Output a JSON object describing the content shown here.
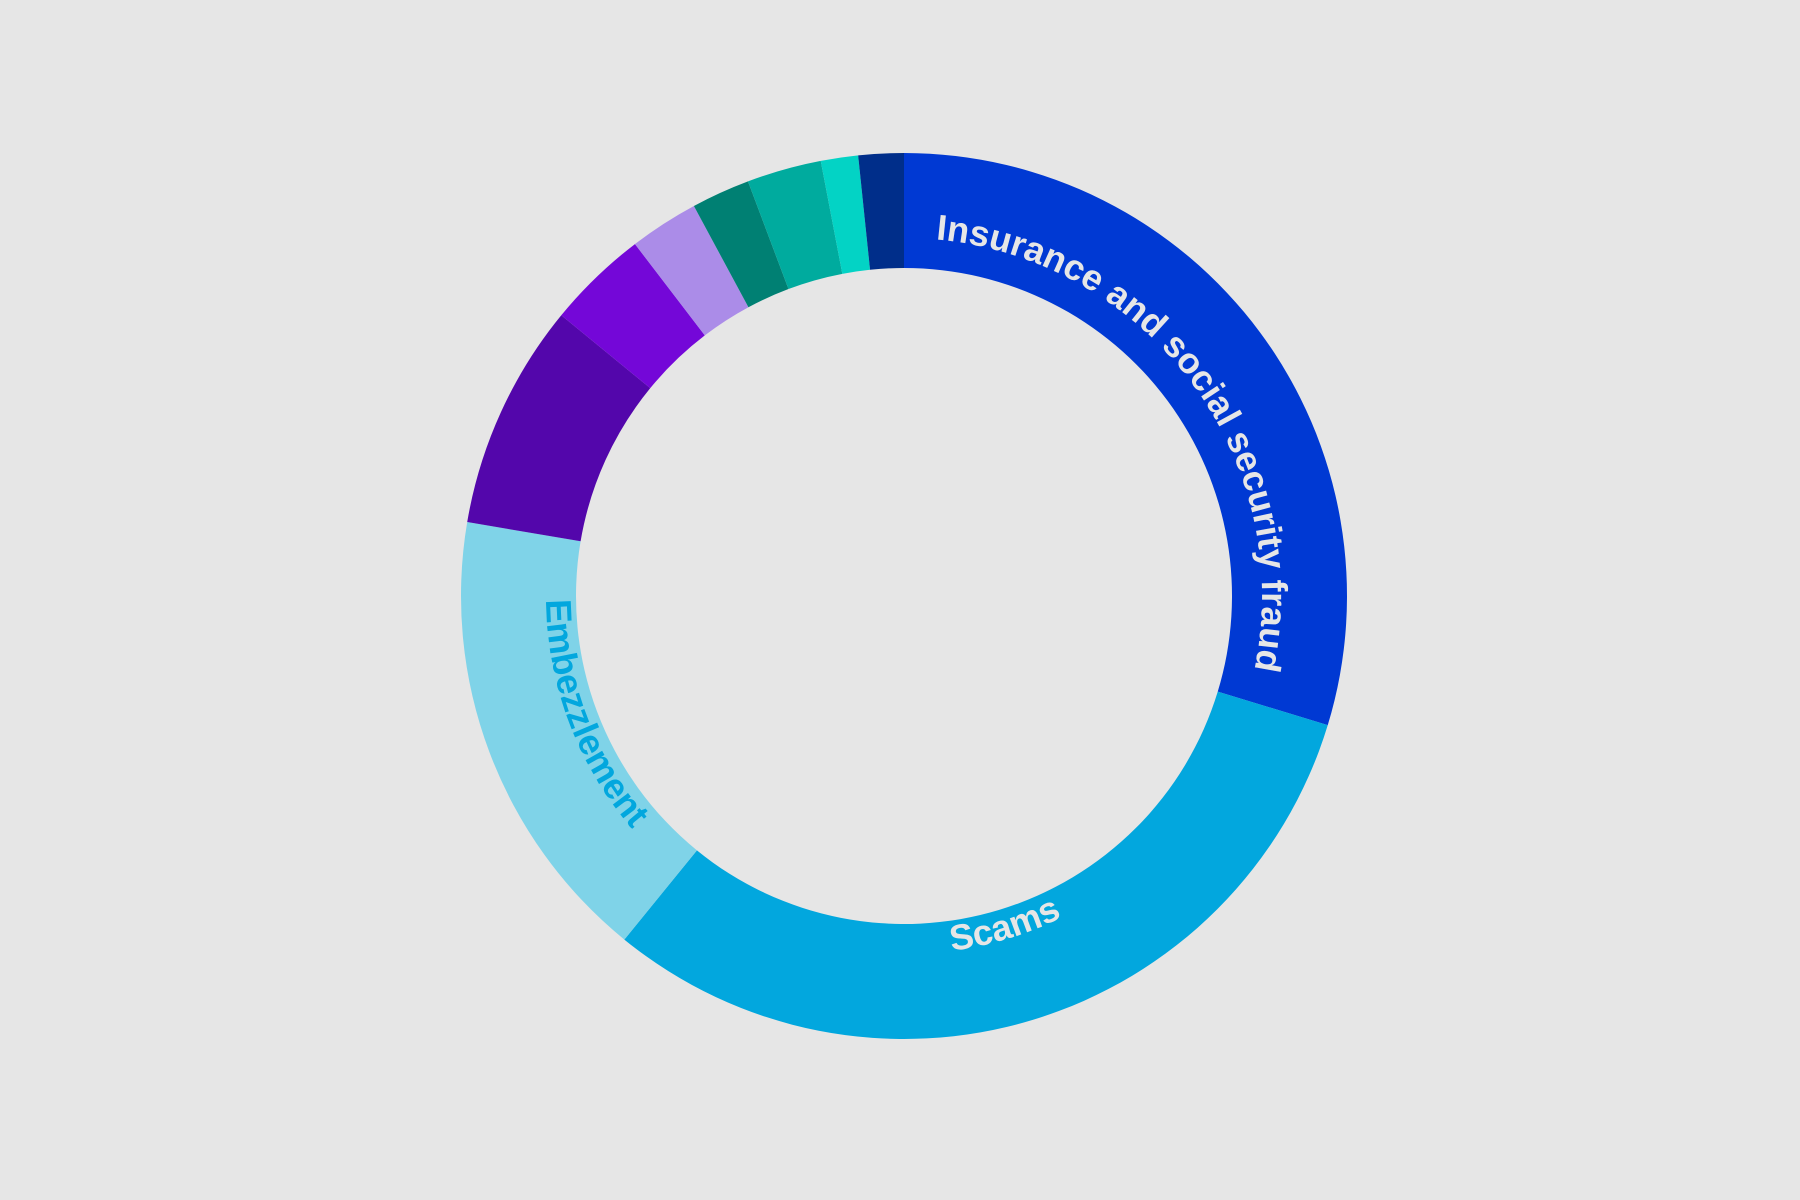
{
  "chart_data": {
    "type": "pie",
    "variant": "donut",
    "start": "top",
    "direction": "clockwise",
    "background_color": "#e6e6e6",
    "legend": "none",
    "slices": [
      {
        "label": "Insurance and social security fraud",
        "value": 30.6,
        "color": "#0039d3",
        "label_color": "#e6e6e6"
      },
      {
        "label": "Scams",
        "value": 32.1,
        "color": "#02a7de",
        "label_color": "#e6e6e6"
      },
      {
        "label": "Embezzlement",
        "value": 17.3,
        "color": "#7fd3e8",
        "label_color": "#02a7de"
      },
      {
        "label": "",
        "value": 8.5,
        "color": "#5306ab"
      },
      {
        "label": "",
        "value": 3.8,
        "color": "#7407d8"
      },
      {
        "label": "",
        "value": 2.6,
        "color": "#ab8ce8"
      },
      {
        "label": "",
        "value": 2.2,
        "color": "#008073"
      },
      {
        "label": "",
        "value": 2.8,
        "color": "#00ab9e"
      },
      {
        "label": "",
        "value": 1.4,
        "color": "#03d3c5"
      },
      {
        "label": "",
        "value": 1.7,
        "color": "#002e8a"
      }
    ]
  }
}
